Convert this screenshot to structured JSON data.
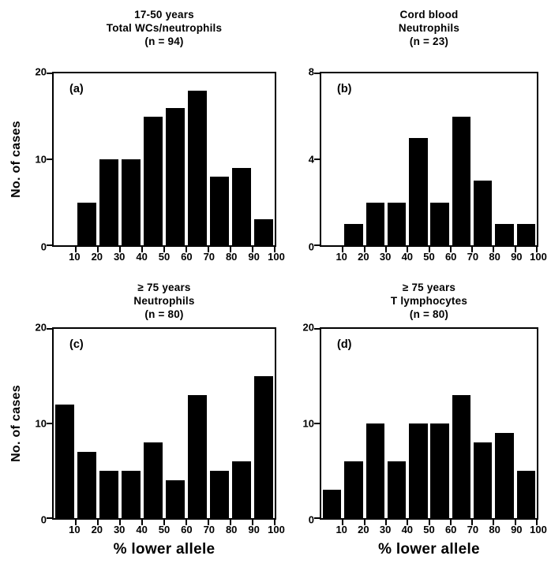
{
  "figure": {
    "ylabel": "No. of cases",
    "xlabel": "% lower allele",
    "bar_color": "#000000",
    "background": "#ffffff"
  },
  "chart_data": [
    {
      "type": "bar",
      "panel_label": "(a)",
      "title_lines": [
        "17-50 years",
        "Total WCs/neutrophils",
        "(n = 94)"
      ],
      "n": 94,
      "bin_starts": [
        0,
        10,
        20,
        30,
        40,
        50,
        60,
        70,
        80,
        90
      ],
      "values": [
        0,
        5,
        10,
        10,
        15,
        16,
        18,
        8,
        9,
        3
      ],
      "ylim": [
        0,
        20
      ],
      "yticks": [
        0,
        10,
        20
      ],
      "xticks": [
        10,
        20,
        30,
        40,
        50,
        60,
        70,
        80,
        90,
        100
      ],
      "xlim": [
        0,
        100
      ]
    },
    {
      "type": "bar",
      "panel_label": "(b)",
      "title_lines": [
        "Cord blood",
        "Neutrophils",
        "(n = 23)"
      ],
      "n": 23,
      "bin_starts": [
        0,
        10,
        20,
        30,
        40,
        50,
        60,
        70,
        80,
        90
      ],
      "values": [
        0,
        1,
        2,
        2,
        5,
        2,
        6,
        3,
        1,
        1
      ],
      "ylim": [
        0,
        8
      ],
      "yticks": [
        0,
        4,
        8
      ],
      "xticks": [
        10,
        20,
        30,
        40,
        50,
        60,
        70,
        80,
        90,
        100
      ],
      "xlim": [
        0,
        100
      ]
    },
    {
      "type": "bar",
      "panel_label": "(c)",
      "title_lines": [
        "≥ 75 years",
        "Neutrophils",
        "(n = 80)"
      ],
      "n": 80,
      "bin_starts": [
        0,
        10,
        20,
        30,
        40,
        50,
        60,
        70,
        80,
        90
      ],
      "values": [
        12,
        7,
        5,
        5,
        8,
        4,
        13,
        5,
        6,
        15
      ],
      "ylim": [
        0,
        20
      ],
      "yticks": [
        0,
        10,
        20
      ],
      "xticks": [
        10,
        20,
        30,
        40,
        50,
        60,
        70,
        80,
        90,
        100
      ],
      "xlim": [
        0,
        100
      ]
    },
    {
      "type": "bar",
      "panel_label": "(d)",
      "title_lines": [
        "≥ 75 years",
        "T lymphocytes",
        "(n = 80)"
      ],
      "n": 80,
      "bin_starts": [
        0,
        10,
        20,
        30,
        40,
        50,
        60,
        70,
        80,
        90
      ],
      "values": [
        3,
        6,
        10,
        6,
        10,
        10,
        13,
        8,
        9,
        5
      ],
      "ylim": [
        0,
        20
      ],
      "yticks": [
        0,
        10,
        20
      ],
      "xticks": [
        10,
        20,
        30,
        40,
        50,
        60,
        70,
        80,
        90,
        100
      ],
      "xlim": [
        0,
        100
      ]
    }
  ]
}
